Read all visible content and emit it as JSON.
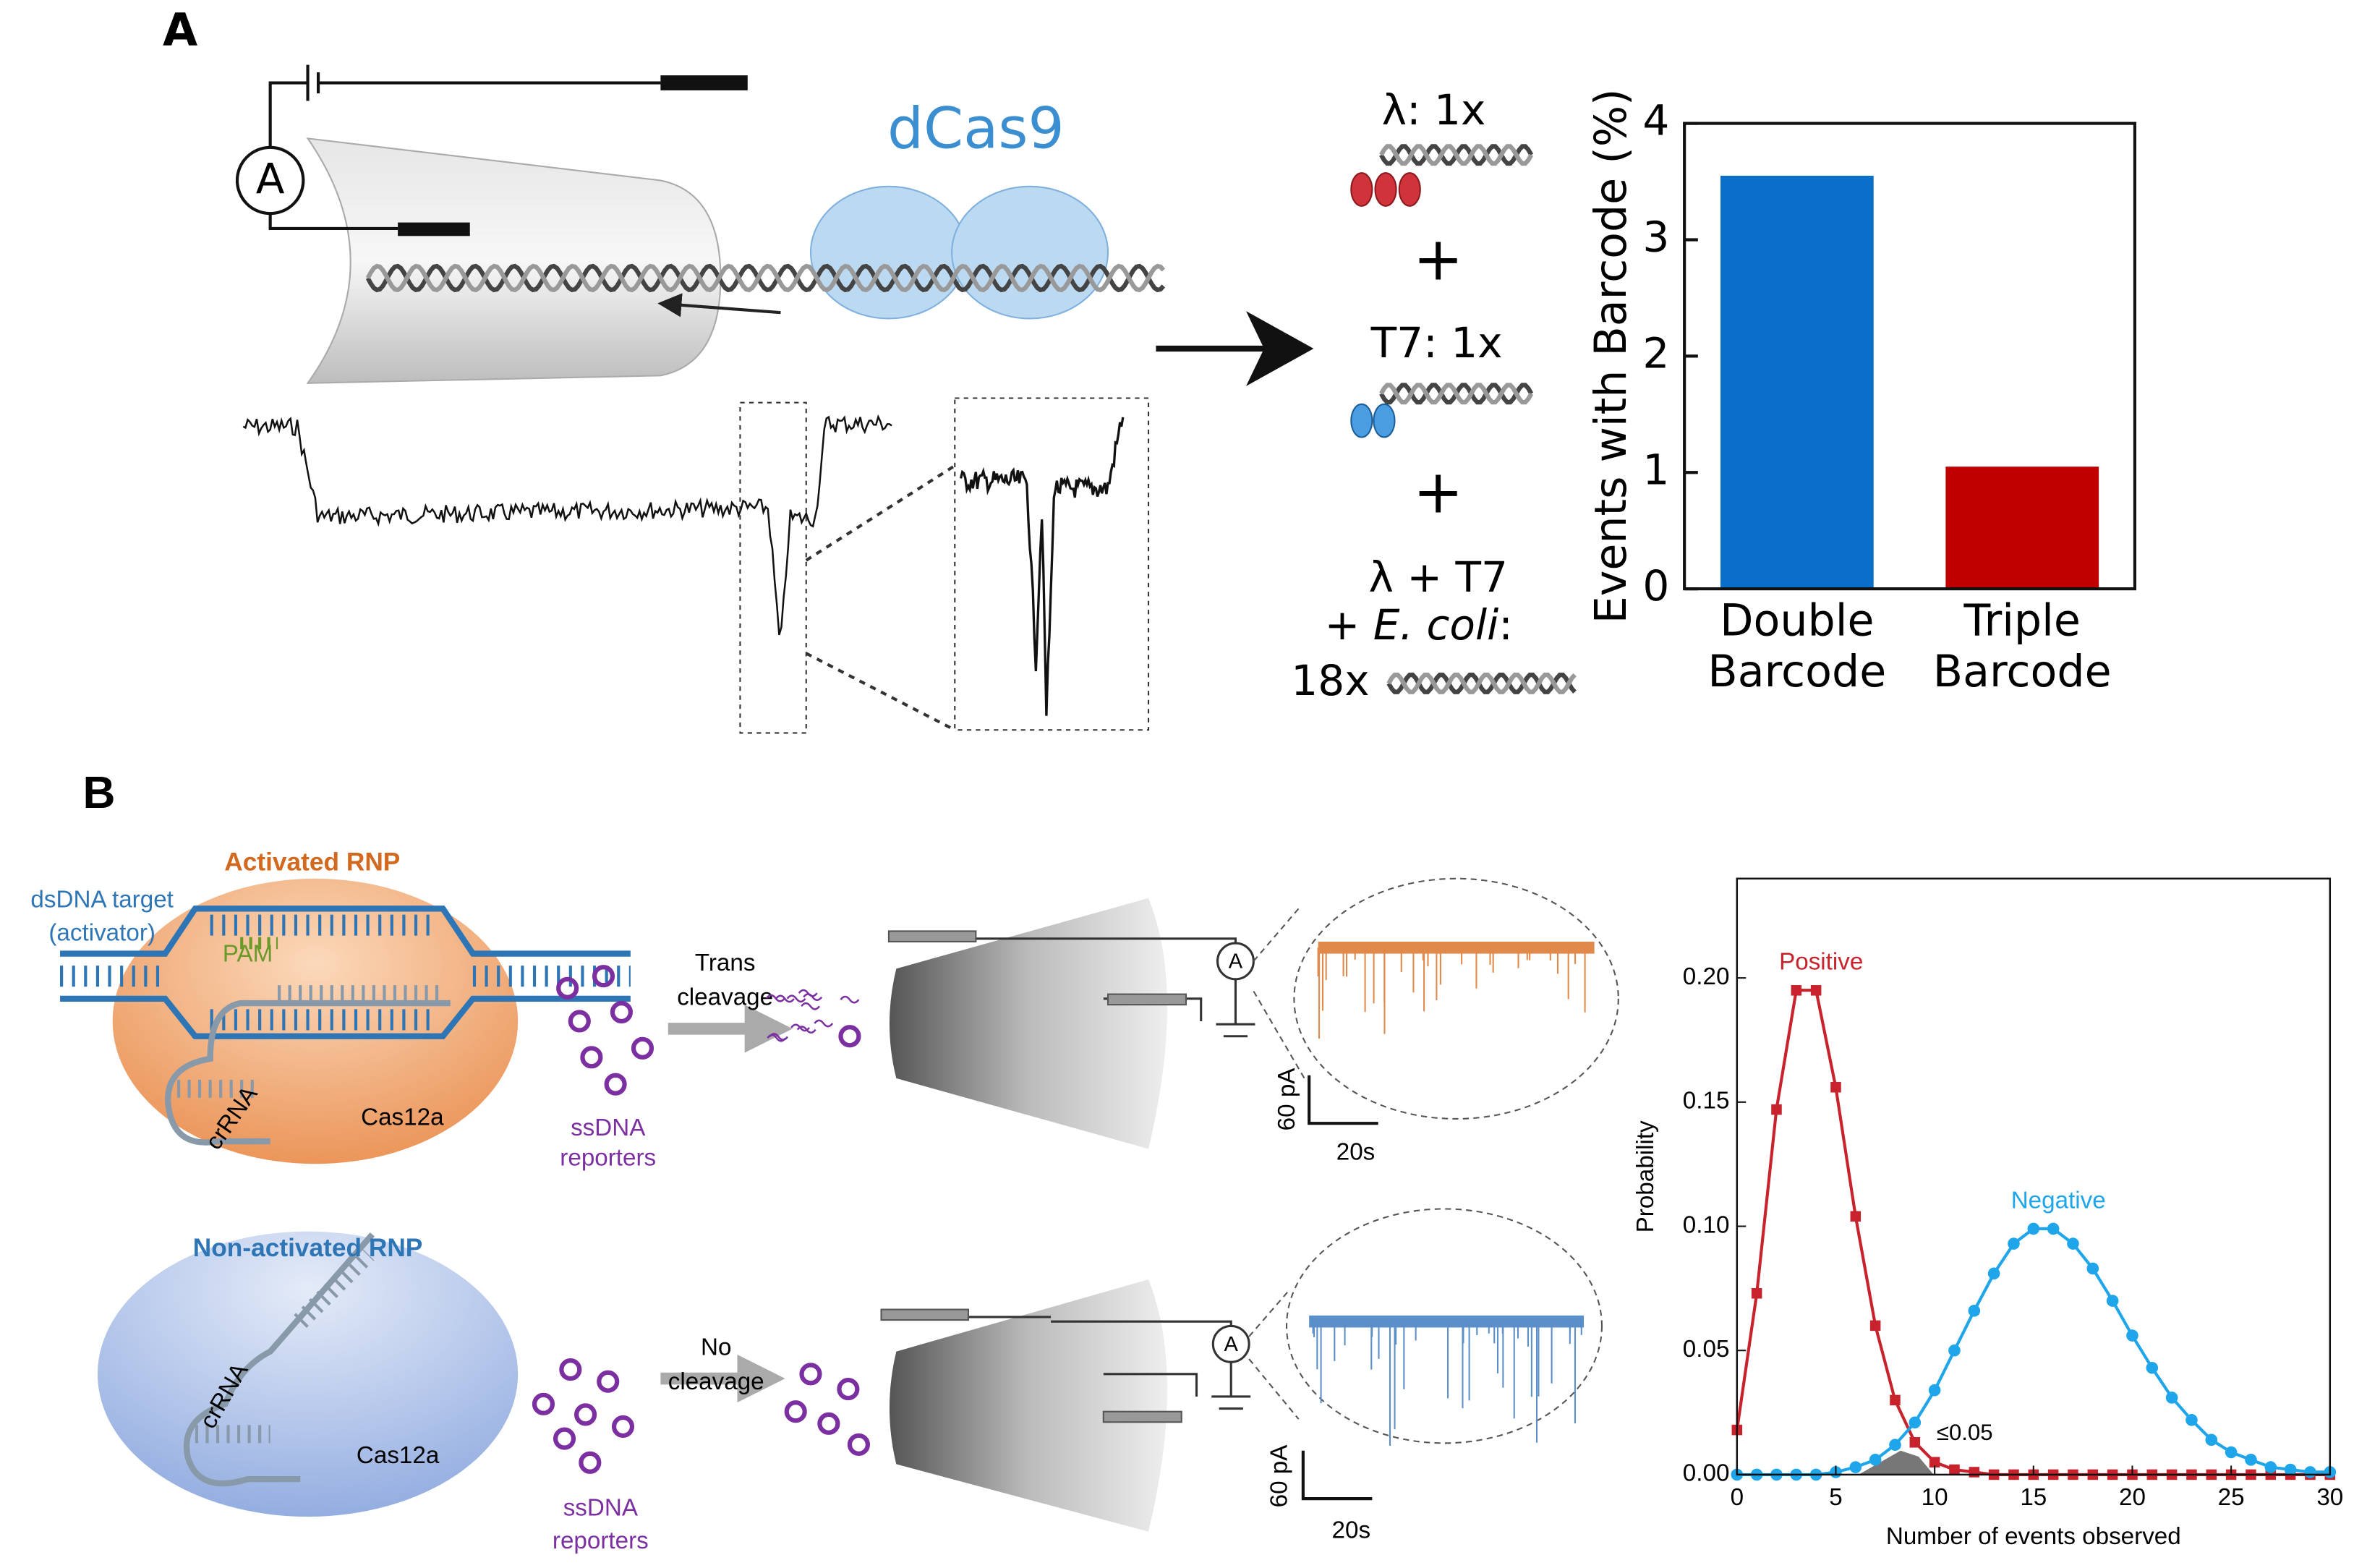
{
  "panel_a": {
    "label": "A",
    "protein": "dCas9",
    "ammeter": "A",
    "mix": [
      "λ: 1x",
      "+",
      "T7: 1x",
      "+",
      "λ + T7"
    ],
    "mix_ecoli": {
      "prefix": "+ ",
      "species": "E. coli",
      "suffix": ":"
    },
    "count": "18x"
  },
  "panel_b": {
    "label": "B",
    "activated": {
      "title": "Activated RNP",
      "target": [
        "dsDNA target",
        "(activator)"
      ],
      "pam": "PAM",
      "crrna": "crRNA",
      "protein": "Cas12a",
      "reporters": [
        "ssDNA",
        "reporters"
      ],
      "process": [
        "Trans",
        "cleavage"
      ],
      "ammeter": "A",
      "scale_current": "60 pA",
      "scale_time": "20s"
    },
    "non_activated": {
      "title": "Non-activated RNP",
      "crrna": "crRNA",
      "protein": "Cas12a",
      "reporters": [
        "ssDNA",
        "reporters"
      ],
      "process": [
        "No",
        "cleavage"
      ],
      "ammeter": "A",
      "scale_current": "60 pA",
      "scale_time": "20s"
    }
  },
  "chart_data": [
    {
      "type": "bar",
      "ylabel": "Events with Barcode (%)",
      "categories": [
        "Double Barcode",
        "Triple Barcode"
      ],
      "values": [
        3.55,
        1.05
      ],
      "colors": [
        "#0a6fc9",
        "#c00000"
      ],
      "ylim": [
        0,
        4
      ],
      "yticks": [
        0,
        1,
        2,
        3,
        4
      ]
    },
    {
      "type": "line",
      "xlabel": "Number of events observed",
      "ylabel": "Probability",
      "annotation": "≤0.05",
      "x": [
        0,
        1,
        2,
        3,
        4,
        5,
        6,
        7,
        8,
        9,
        10,
        11,
        12,
        13,
        14,
        15,
        16,
        17,
        18,
        19,
        20,
        21,
        22,
        23,
        24,
        25,
        26,
        27,
        28,
        29,
        30
      ],
      "series": [
        {
          "name": "Positive",
          "color": "#c8232c",
          "marker": "square",
          "values": [
            0.018,
            0.073,
            0.147,
            0.195,
            0.195,
            0.156,
            0.104,
            0.06,
            0.03,
            0.013,
            0.005,
            0.002,
            0.001,
            0,
            0,
            0,
            0,
            0,
            0,
            0,
            0,
            0,
            0,
            0,
            0,
            0,
            0,
            0,
            0,
            0,
            0
          ]
        },
        {
          "name": "Negative",
          "color": "#1ea5ea",
          "marker": "circle",
          "values": [
            0,
            0,
            0,
            0,
            0,
            0.001,
            0.003,
            0.006,
            0.012,
            0.021,
            0.034,
            0.05,
            0.066,
            0.081,
            0.093,
            0.099,
            0.099,
            0.093,
            0.083,
            0.07,
            0.056,
            0.043,
            0.031,
            0.022,
            0.014,
            0.009,
            0.006,
            0.003,
            0.002,
            0.001,
            0.001
          ]
        }
      ],
      "xlim": [
        0,
        30
      ],
      "ylim": [
        0,
        0.24
      ],
      "xticks": [
        0,
        5,
        10,
        15,
        20,
        25,
        30
      ],
      "yticks": [
        {
          "value": 0,
          "label": "0.00"
        },
        {
          "value": 0.05,
          "label": "0.05"
        },
        {
          "value": 0.1,
          "label": "0.10"
        },
        {
          "value": 0.15,
          "label": "0.15"
        },
        {
          "value": 0.2,
          "label": "0.20"
        }
      ]
    }
  ]
}
